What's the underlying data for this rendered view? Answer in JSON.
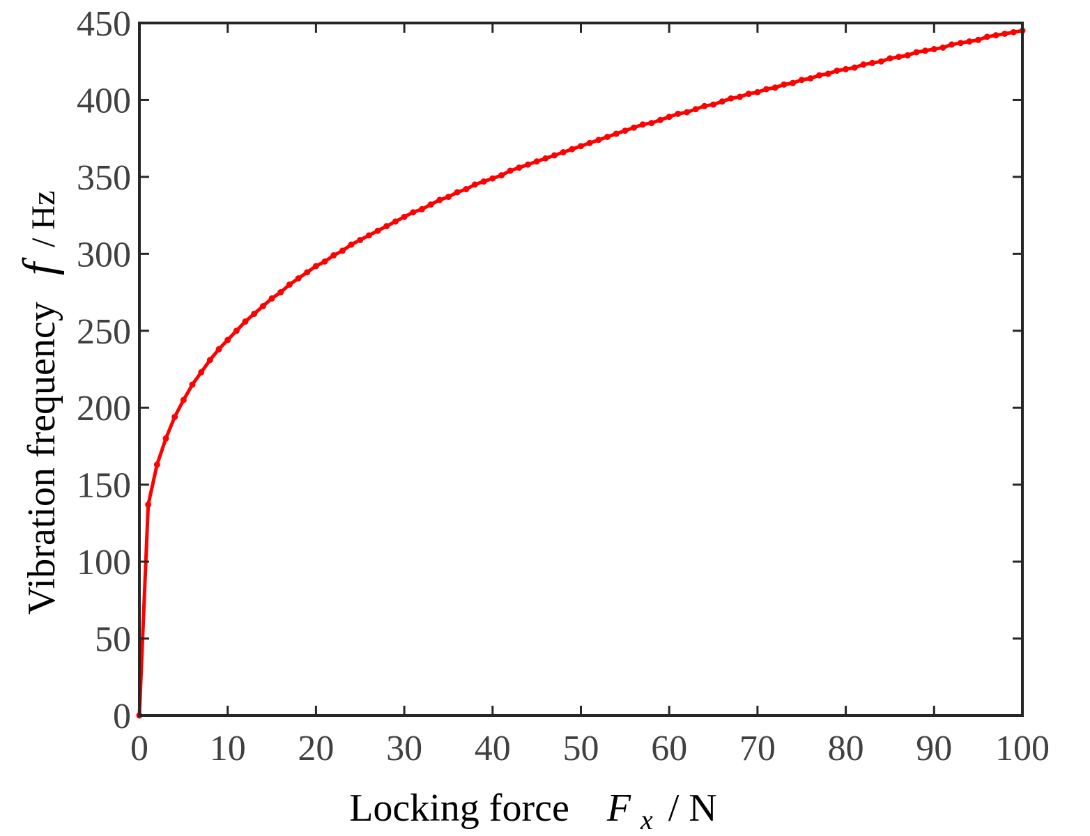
{
  "chart_data": {
    "type": "line",
    "title": "",
    "xlabel": {
      "prefix": "Locking force",
      "symbol": "F",
      "subscript": "x",
      "unit": " / N"
    },
    "ylabel": {
      "prefix": "Vibration frequency",
      "symbol": "f",
      "unit": " / Hz"
    },
    "xlim": [
      0,
      100
    ],
    "ylim": [
      0,
      450
    ],
    "x_ticks": [
      0,
      10,
      20,
      30,
      40,
      50,
      60,
      70,
      80,
      90,
      100
    ],
    "y_ticks": [
      0,
      50,
      100,
      150,
      200,
      250,
      300,
      350,
      400,
      450
    ],
    "x_tick_labels": [
      "0",
      "10",
      "20",
      "30",
      "40",
      "50",
      "60",
      "70",
      "80",
      "90",
      "100"
    ],
    "y_tick_labels": [
      "0",
      "50",
      "100",
      "150",
      "200",
      "250",
      "300",
      "350",
      "400",
      "450"
    ],
    "grid": false,
    "series": [
      {
        "color": "#ff0000",
        "marker": "circle",
        "points": [
          [
            0,
            0
          ],
          [
            1,
            137
          ],
          [
            2,
            163
          ],
          [
            3,
            180
          ],
          [
            4,
            194
          ],
          [
            5,
            205
          ],
          [
            6,
            215
          ],
          [
            7,
            223
          ],
          [
            8,
            231
          ],
          [
            9,
            238
          ],
          [
            10,
            244
          ],
          [
            11,
            250
          ],
          [
            12,
            256
          ],
          [
            13,
            261
          ],
          [
            14,
            266
          ],
          [
            15,
            271
          ],
          [
            16,
            275
          ],
          [
            17,
            280
          ],
          [
            18,
            284
          ],
          [
            19,
            288
          ],
          [
            20,
            292
          ],
          [
            21,
            295
          ],
          [
            22,
            299
          ],
          [
            23,
            302
          ],
          [
            24,
            306
          ],
          [
            25,
            309
          ],
          [
            26,
            312
          ],
          [
            27,
            315
          ],
          [
            28,
            318
          ],
          [
            29,
            321
          ],
          [
            30,
            324
          ],
          [
            31,
            327
          ],
          [
            32,
            329
          ],
          [
            33,
            332
          ],
          [
            34,
            335
          ],
          [
            35,
            337
          ],
          [
            36,
            340
          ],
          [
            37,
            342
          ],
          [
            38,
            345
          ],
          [
            39,
            347
          ],
          [
            40,
            349
          ],
          [
            41,
            351
          ],
          [
            42,
            354
          ],
          [
            43,
            356
          ],
          [
            44,
            358
          ],
          [
            45,
            360
          ],
          [
            46,
            362
          ],
          [
            47,
            364
          ],
          [
            48,
            366
          ],
          [
            49,
            368
          ],
          [
            50,
            370
          ],
          [
            51,
            372
          ],
          [
            52,
            374
          ],
          [
            53,
            376
          ],
          [
            54,
            378
          ],
          [
            55,
            380
          ],
          [
            56,
            382
          ],
          [
            57,
            384
          ],
          [
            58,
            385
          ],
          [
            59,
            387
          ],
          [
            60,
            389
          ],
          [
            61,
            391
          ],
          [
            62,
            392
          ],
          [
            63,
            394
          ],
          [
            64,
            396
          ],
          [
            65,
            397
          ],
          [
            66,
            399
          ],
          [
            67,
            401
          ],
          [
            68,
            402
          ],
          [
            69,
            404
          ],
          [
            70,
            405
          ],
          [
            71,
            407
          ],
          [
            72,
            408
          ],
          [
            73,
            410
          ],
          [
            74,
            411
          ],
          [
            75,
            413
          ],
          [
            76,
            414
          ],
          [
            77,
            416
          ],
          [
            78,
            417
          ],
          [
            79,
            419
          ],
          [
            80,
            420
          ],
          [
            81,
            421
          ],
          [
            82,
            423
          ],
          [
            83,
            424
          ],
          [
            84,
            425
          ],
          [
            85,
            427
          ],
          [
            86,
            428
          ],
          [
            87,
            429
          ],
          [
            88,
            431
          ],
          [
            89,
            432
          ],
          [
            90,
            433
          ],
          [
            91,
            434
          ],
          [
            92,
            436
          ],
          [
            93,
            437
          ],
          [
            94,
            438
          ],
          [
            95,
            439
          ],
          [
            96,
            441
          ],
          [
            97,
            442
          ],
          [
            98,
            443
          ],
          [
            99,
            444
          ],
          [
            100,
            445
          ]
        ]
      }
    ]
  }
}
